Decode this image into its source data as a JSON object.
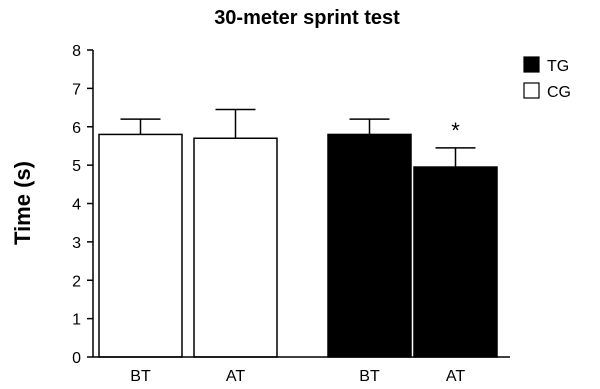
{
  "chart_data": {
    "type": "bar",
    "title": "30-meter sprint test",
    "xlabel": "",
    "ylabel": "Time (s)",
    "ylim": [
      0,
      8
    ],
    "yticks": [
      "0",
      "1",
      "2",
      "3",
      "4",
      "5",
      "6",
      "7",
      "8"
    ],
    "categories": [
      "BT",
      "AT",
      "BT",
      "AT"
    ],
    "bars": [
      {
        "category": "BT",
        "group": "CG",
        "value": 5.8,
        "error": 0.4
      },
      {
        "category": "AT",
        "group": "CG",
        "value": 5.7,
        "error": 0.75
      },
      {
        "category": "BT",
        "group": "TG",
        "value": 5.8,
        "error": 0.4
      },
      {
        "category": "AT",
        "group": "TG",
        "value": 4.95,
        "error": 0.5,
        "annotation": "*"
      }
    ],
    "legend": {
      "position": "top-right",
      "entries": [
        {
          "name": "TG",
          "fill": "#000000"
        },
        {
          "name": "CG",
          "fill": "#ffffff"
        }
      ]
    },
    "grid": false,
    "colors": {
      "axis": "#000000",
      "bar_edge": "#000000"
    }
  }
}
